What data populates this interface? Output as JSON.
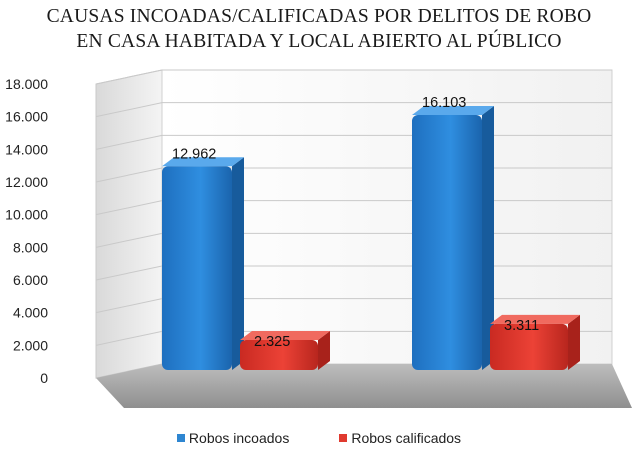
{
  "chart_data": {
    "type": "bar",
    "title_line1": "CAUSAS INCOADAS/CALIFICADAS POR DELITOS DE ROBO",
    "title_line2": "EN CASA HABITADA Y LOCAL ABIERTO AL PÚBLICO",
    "categories": [
      "",
      ""
    ],
    "series": [
      {
        "name": "Robos incoados",
        "values": [
          12962,
          16103
        ],
        "labels": [
          "12.962",
          "16.103"
        ],
        "color": "#2E86D1"
      },
      {
        "name": "Robos calificados",
        "values": [
          2325,
          3311
        ],
        "labels": [
          "2.325",
          "3.311"
        ],
        "color": "#E03A2F"
      }
    ],
    "ylim": [
      0,
      18000
    ],
    "yticks": [
      "0",
      "2.000",
      "4.000",
      "6.000",
      "8.000",
      "10.000",
      "12.000",
      "14.000",
      "16.000",
      "18.000"
    ],
    "grid": true,
    "legend_position": "bottom"
  }
}
